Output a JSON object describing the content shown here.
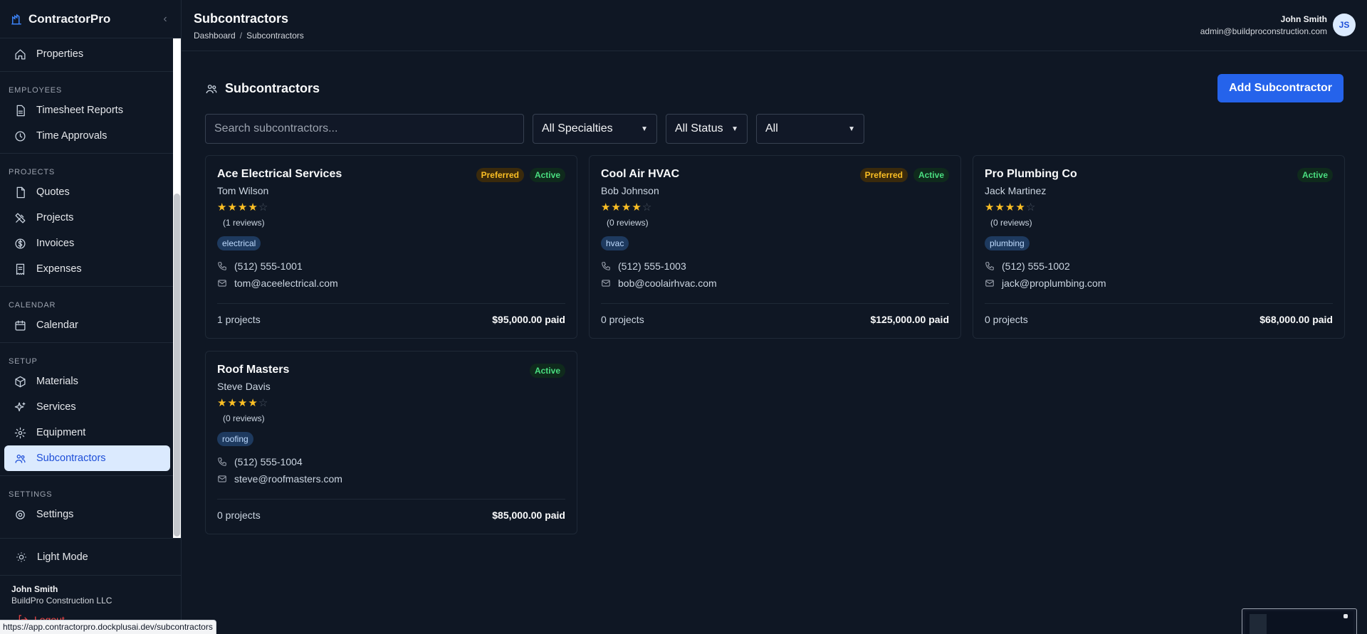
{
  "brand": {
    "name": "ContractorPro"
  },
  "sidebar": {
    "top_items": [
      {
        "label": "Properties",
        "icon": "home-icon"
      }
    ],
    "sections": [
      {
        "label": "EMPLOYEES",
        "items": [
          {
            "label": "Timesheet Reports",
            "icon": "file-text-icon"
          },
          {
            "label": "Time Approvals",
            "icon": "clock-icon"
          }
        ]
      },
      {
        "label": "PROJECTS",
        "items": [
          {
            "label": "Quotes",
            "icon": "file-icon"
          },
          {
            "label": "Projects",
            "icon": "tools-icon"
          },
          {
            "label": "Invoices",
            "icon": "dollar-circle-icon"
          },
          {
            "label": "Expenses",
            "icon": "receipt-icon"
          }
        ]
      },
      {
        "label": "CALENDAR",
        "items": [
          {
            "label": "Calendar",
            "icon": "calendar-icon"
          }
        ]
      },
      {
        "label": "SETUP",
        "items": [
          {
            "label": "Materials",
            "icon": "box-icon"
          },
          {
            "label": "Services",
            "icon": "sparkles-icon"
          },
          {
            "label": "Equipment",
            "icon": "gear-icon"
          },
          {
            "label": "Subcontractors",
            "icon": "users-icon",
            "active": true
          }
        ]
      },
      {
        "label": "SETTINGS",
        "items": [
          {
            "label": "Settings",
            "icon": "cog-icon"
          }
        ]
      }
    ],
    "light_mode": "Light Mode",
    "user_name": "John Smith",
    "user_company": "BuildPro Construction LLC",
    "logout": "Logout"
  },
  "header": {
    "title": "Subcontractors",
    "breadcrumb": [
      "Dashboard",
      "Subcontractors"
    ],
    "user_name": "John Smith",
    "user_email": "admin@buildproconstruction.com",
    "avatar_initials": "JS"
  },
  "main": {
    "section_title": "Subcontractors",
    "add_button": "Add Subcontractor",
    "search_placeholder": "Search subcontractors...",
    "filters": [
      "All Specialties",
      "All Status",
      "All"
    ]
  },
  "subcontractors": [
    {
      "name": "Ace Electrical Services",
      "contact": "Tom Wilson",
      "rating": 4,
      "reviews": "(1 reviews)",
      "specialty": "electrical",
      "phone": "(512) 555-1001",
      "email": "tom@aceelectrical.com",
      "projects": "1 projects",
      "paid": "$95,000.00 paid",
      "badges": [
        "Preferred",
        "Active"
      ]
    },
    {
      "name": "Cool Air HVAC",
      "contact": "Bob Johnson",
      "rating": 4,
      "reviews": "(0 reviews)",
      "specialty": "hvac",
      "phone": "(512) 555-1003",
      "email": "bob@coolairhvac.com",
      "projects": "0 projects",
      "paid": "$125,000.00 paid",
      "badges": [
        "Preferred",
        "Active"
      ]
    },
    {
      "name": "Pro Plumbing Co",
      "contact": "Jack Martinez",
      "rating": 4,
      "reviews": "(0 reviews)",
      "specialty": "plumbing",
      "phone": "(512) 555-1002",
      "email": "jack@proplumbing.com",
      "projects": "0 projects",
      "paid": "$68,000.00 paid",
      "badges": [
        "Active"
      ]
    },
    {
      "name": "Roof Masters",
      "contact": "Steve Davis",
      "rating": 4,
      "reviews": "(0 reviews)",
      "specialty": "roofing",
      "phone": "(512) 555-1004",
      "email": "steve@roofmasters.com",
      "projects": "0 projects",
      "paid": "$85,000.00 paid",
      "badges": [
        "Active"
      ]
    }
  ],
  "status_bar": {
    "url": "https://app.contractorpro.dockplusai.dev/subcontractors"
  },
  "colors": {
    "accent": "#2563eb",
    "preferred": "#fbbf24",
    "active": "#4ade80",
    "background": "#0f1724"
  }
}
